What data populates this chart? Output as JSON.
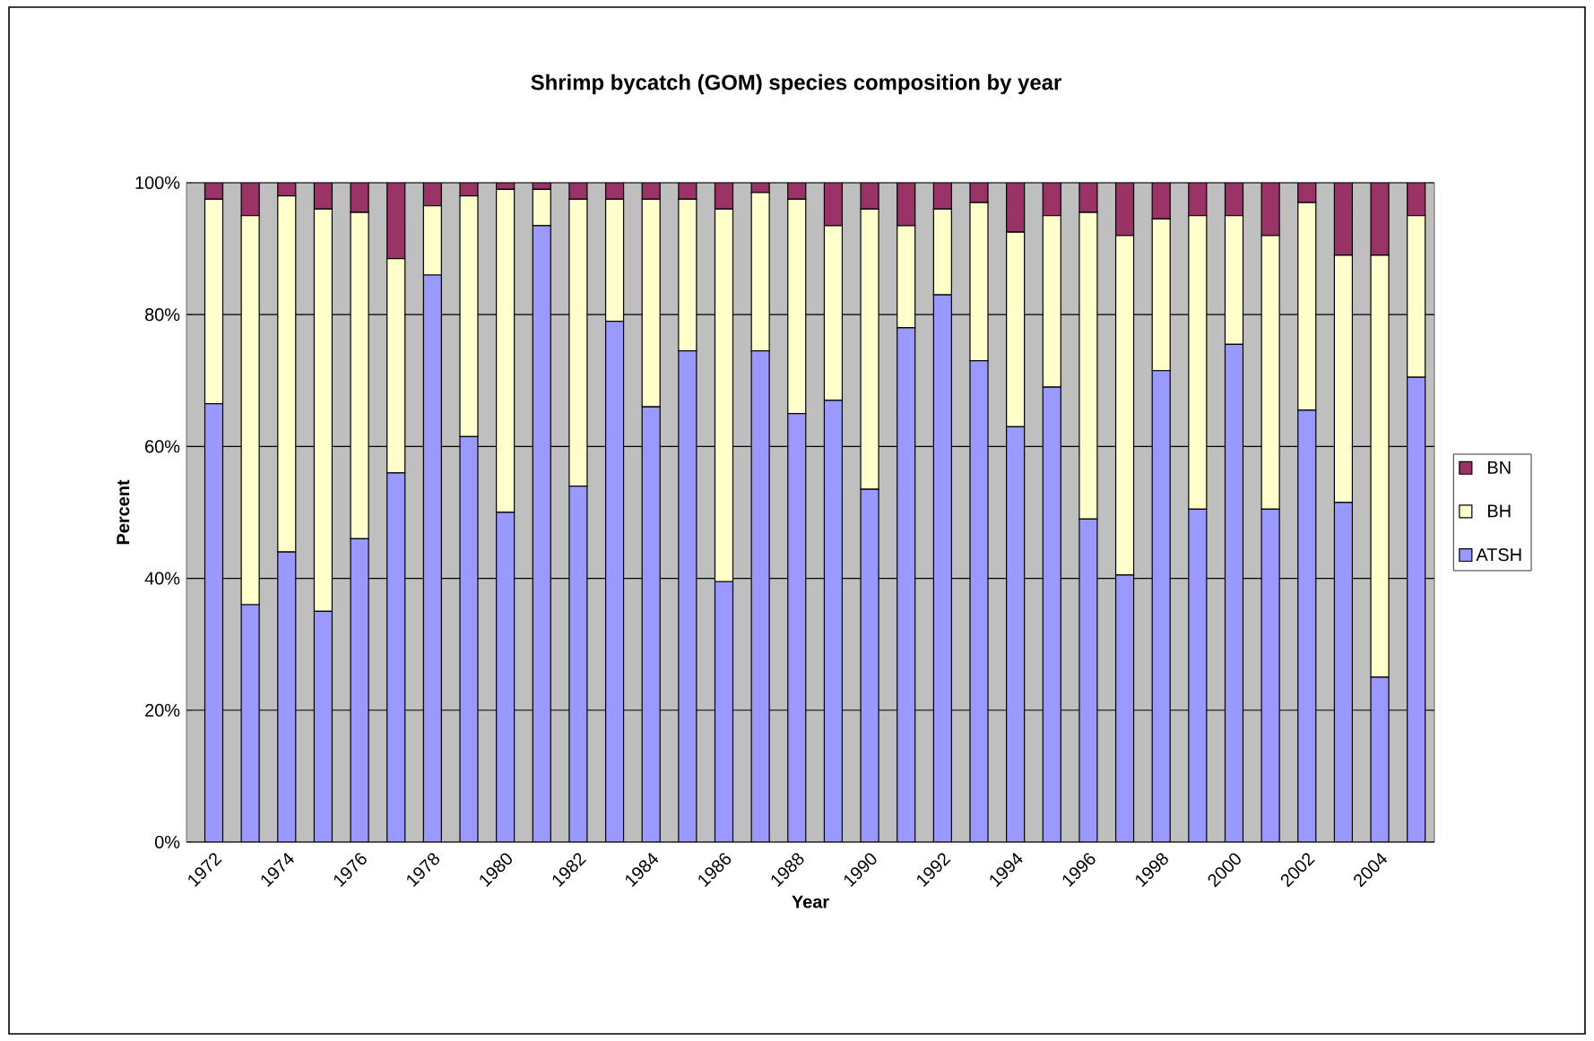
{
  "chart_data": {
    "type": "bar",
    "title": "Shrimp bycatch (GOM) species composition by year",
    "xlabel": "Year",
    "ylabel": "Percent",
    "categories": [
      "1972",
      null,
      "1974",
      null,
      "1976",
      null,
      "1978",
      null,
      "1980",
      null,
      "1982",
      null,
      "1984",
      null,
      "1986",
      null,
      "1988",
      null,
      "1990",
      null,
      "1992",
      null,
      "1994",
      null,
      "1996",
      null,
      "1998",
      null,
      "2000",
      null,
      "2002",
      null,
      "2004",
      null
    ],
    "stacked": true,
    "series": [
      {
        "name": "ATSH",
        "color": "#9999ff",
        "values": [
          66.5,
          36,
          44,
          35,
          46,
          56,
          86,
          61.5,
          50,
          93.5,
          54,
          79,
          66,
          74.5,
          39.5,
          74.5,
          65,
          67,
          53.5,
          78,
          83,
          73,
          63,
          69,
          49,
          40.5,
          71.5,
          50.5,
          75.5,
          50.5,
          65.5,
          51.5,
          25,
          70.5
        ]
      },
      {
        "name": "BH",
        "color": "#ffffcc",
        "values": [
          31,
          59,
          54,
          61,
          49.5,
          32.5,
          10.5,
          36.5,
          49,
          5.5,
          43.5,
          18.5,
          31.5,
          23,
          56.5,
          24,
          32.5,
          26.5,
          42.5,
          15.5,
          13,
          24,
          29.5,
          26,
          46.5,
          51.5,
          23,
          44.5,
          19.5,
          41.5,
          31.5,
          37.5,
          64,
          24.5
        ]
      },
      {
        "name": "BN",
        "color": "#993366",
        "values": [
          2.5,
          5,
          2,
          4,
          4.5,
          11.5,
          3.5,
          2,
          1,
          1,
          2.5,
          2.5,
          2.5,
          2.5,
          4,
          1.5,
          2.5,
          6.5,
          4,
          6.5,
          4,
          3,
          7.5,
          5,
          4.5,
          8,
          5.5,
          5,
          5,
          8,
          3,
          11,
          11,
          5
        ]
      }
    ],
    "ylim": [
      0,
      100
    ],
    "yticks": [
      {
        "value": 0,
        "label": "0%"
      },
      {
        "value": 20,
        "label": "20%"
      },
      {
        "value": 40,
        "label": "40%"
      },
      {
        "value": 60,
        "label": "60%"
      },
      {
        "value": 80,
        "label": "80%"
      },
      {
        "value": 100,
        "label": "100%"
      }
    ],
    "grid": "y",
    "legend": "right"
  }
}
